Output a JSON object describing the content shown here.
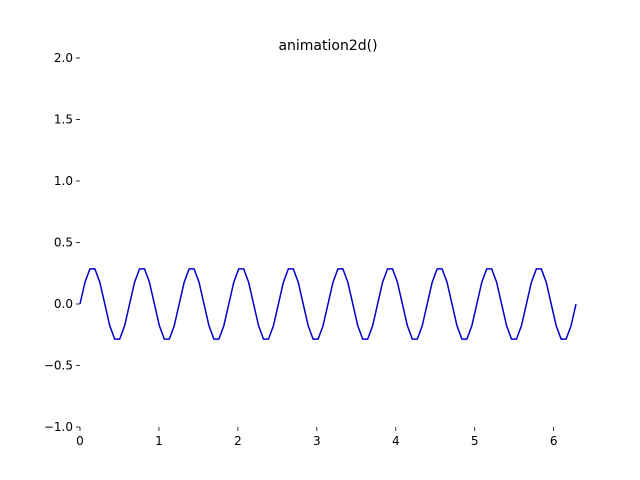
{
  "chart_data": {
    "type": "line",
    "title": "animation2d()",
    "xlabel": "",
    "ylabel": "",
    "xlim": [
      0,
      6.283
    ],
    "ylim": [
      -1.0,
      2.0
    ],
    "x_ticks": [
      {
        "value": 0,
        "label": "0"
      },
      {
        "value": 1,
        "label": "1"
      },
      {
        "value": 2,
        "label": "2"
      },
      {
        "value": 3,
        "label": "3"
      },
      {
        "value": 4,
        "label": "4"
      },
      {
        "value": 5,
        "label": "5"
      },
      {
        "value": 6,
        "label": "6"
      }
    ],
    "y_ticks": [
      {
        "value": -1.0,
        "label": "−1.0"
      },
      {
        "value": -0.5,
        "label": "−0.5"
      },
      {
        "value": 0.0,
        "label": "0.0"
      },
      {
        "value": 0.5,
        "label": "0.5"
      },
      {
        "value": 1.0,
        "label": "1.0"
      },
      {
        "value": 1.5,
        "label": "1.5"
      },
      {
        "value": 2.0,
        "label": "2.0"
      }
    ],
    "grid": false,
    "series": [
      {
        "color": "#0000cc",
        "function": "0.3*sin(10*x)",
        "x_start": 0,
        "x_end": 6.283,
        "points": 101
      }
    ]
  }
}
